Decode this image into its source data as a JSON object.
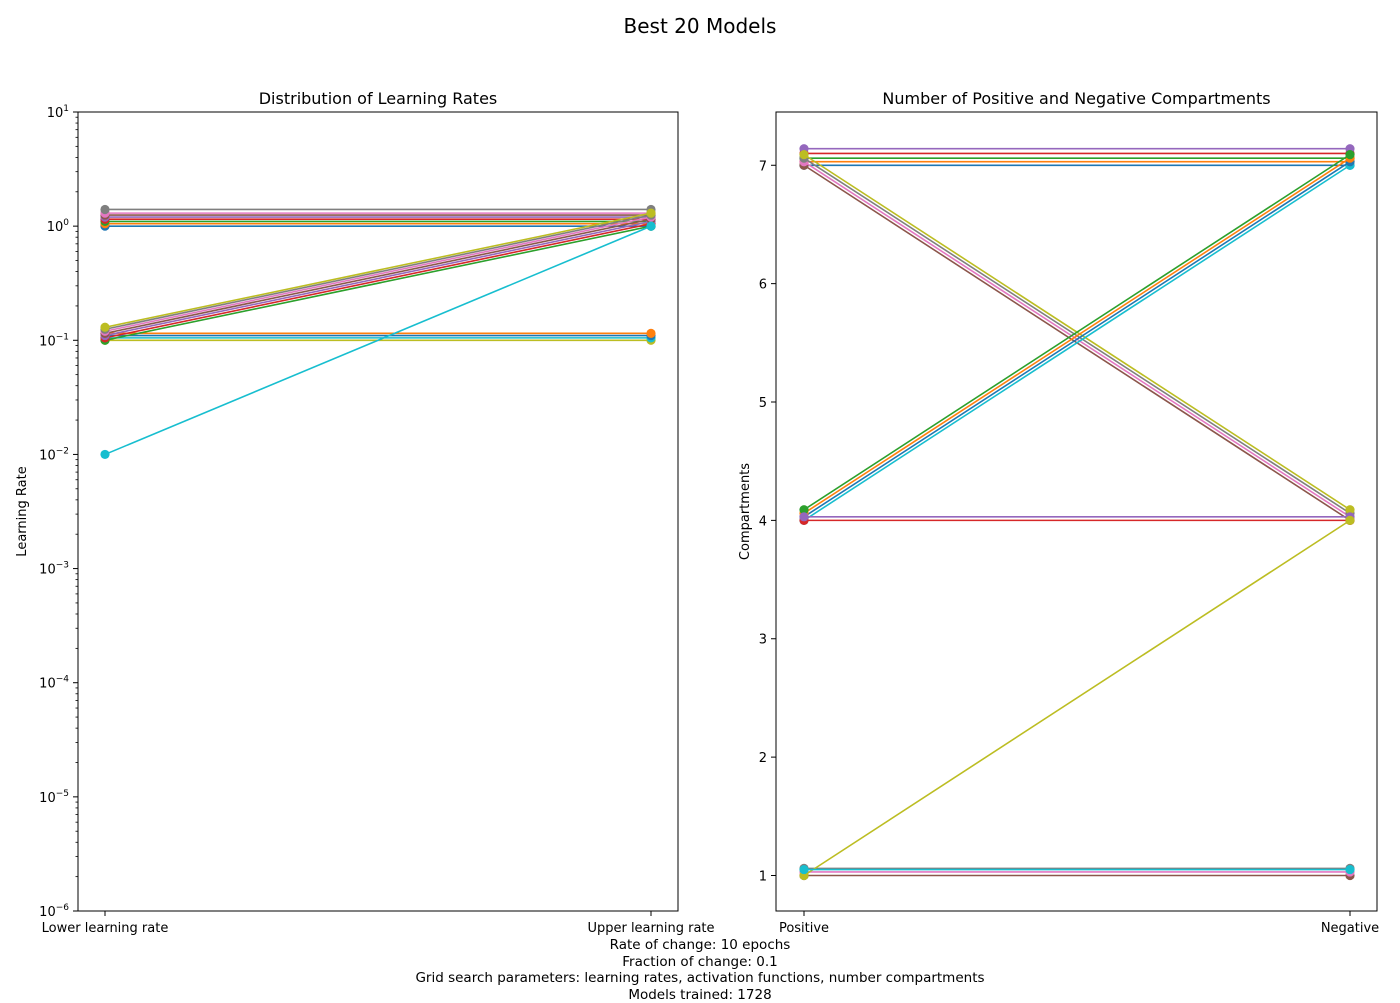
{
  "suptitle": "Best 20 Models",
  "footer": [
    "Rate of change: 10 epochs",
    "Fraction of change: 0.1",
    "Grid search parameters: learning rates, activation functions, number compartments",
    "Models trained: 1728"
  ],
  "colors": [
    "#1f77b4",
    "#ff7f0e",
    "#2ca02c",
    "#d62728",
    "#9467bd",
    "#8c564b",
    "#e377c2",
    "#7f7f7f",
    "#bcbd22",
    "#17becf"
  ],
  "chart_data": [
    {
      "type": "line",
      "title": "Distribution of Learning Rates",
      "xlabel": "",
      "ylabel": "Learning Rate",
      "categories": [
        "Lower learning rate",
        "Upper learning rate"
      ],
      "yscale": "log",
      "ylim": [
        1e-06,
        10
      ],
      "yticks": [
        {
          "base": "10",
          "exp": "−6"
        },
        {
          "base": "10",
          "exp": "−5"
        },
        {
          "base": "10",
          "exp": "−4"
        },
        {
          "base": "10",
          "exp": "−3"
        },
        {
          "base": "10",
          "exp": "−2"
        },
        {
          "base": "10",
          "exp": "−1"
        },
        {
          "base": "10",
          "exp": "0"
        },
        {
          "base": "10",
          "exp": "1"
        }
      ],
      "grid": false,
      "series": [
        {
          "values": [
            1.0,
            1.0
          ]
        },
        {
          "values": [
            1.05,
            1.05
          ]
        },
        {
          "values": [
            1.1,
            1.1
          ]
        },
        {
          "values": [
            1.15,
            1.15
          ]
        },
        {
          "values": [
            1.2,
            1.2
          ]
        },
        {
          "values": [
            1.25,
            1.25
          ]
        },
        {
          "values": [
            1.3,
            1.3
          ]
        },
        {
          "values": [
            1.4,
            1.4
          ]
        },
        {
          "values": [
            0.1,
            0.1
          ]
        },
        {
          "values": [
            0.105,
            0.105
          ]
        },
        {
          "values": [
            0.11,
            0.11
          ]
        },
        {
          "values": [
            0.115,
            0.115
          ]
        },
        {
          "values": [
            0.1,
            1.0
          ]
        },
        {
          "values": [
            0.105,
            1.05
          ]
        },
        {
          "values": [
            0.11,
            1.1
          ]
        },
        {
          "values": [
            0.115,
            1.15
          ]
        },
        {
          "values": [
            0.12,
            1.2
          ]
        },
        {
          "values": [
            0.125,
            1.25
          ]
        },
        {
          "values": [
            0.13,
            1.3
          ]
        },
        {
          "values": [
            0.01,
            1.0
          ]
        }
      ]
    },
    {
      "type": "line",
      "title": "Number of Positive and Negative Compartments",
      "xlabel": "",
      "ylabel": "Compartments",
      "categories": [
        "Positive",
        "Negative"
      ],
      "yscale": "linear",
      "ylim": [
        0.7,
        7.45
      ],
      "yticks": [
        1,
        2,
        3,
        4,
        5,
        6,
        7
      ],
      "grid": false,
      "series": [
        {
          "values": [
            7.0,
            7.0
          ]
        },
        {
          "values": [
            7.03,
            7.03
          ]
        },
        {
          "values": [
            7.06,
            7.06
          ]
        },
        {
          "values": [
            7.1,
            7.1
          ]
        },
        {
          "values": [
            7.14,
            7.14
          ]
        },
        {
          "values": [
            7.0,
            4.0
          ]
        },
        {
          "values": [
            7.03,
            4.03
          ]
        },
        {
          "values": [
            7.06,
            4.06
          ]
        },
        {
          "values": [
            7.09,
            4.09
          ]
        },
        {
          "values": [
            4.0,
            7.0
          ]
        },
        {
          "values": [
            4.03,
            7.03
          ]
        },
        {
          "values": [
            4.06,
            7.06
          ]
        },
        {
          "values": [
            4.09,
            7.09
          ]
        },
        {
          "values": [
            4.0,
            4.0
          ]
        },
        {
          "values": [
            4.03,
            4.03
          ]
        },
        {
          "values": [
            1.0,
            1.0
          ]
        },
        {
          "values": [
            1.03,
            1.03
          ]
        },
        {
          "values": [
            1.06,
            1.06
          ]
        },
        {
          "values": [
            1.0,
            4.0
          ]
        },
        {
          "values": [
            1.05,
            1.05
          ]
        }
      ]
    }
  ]
}
